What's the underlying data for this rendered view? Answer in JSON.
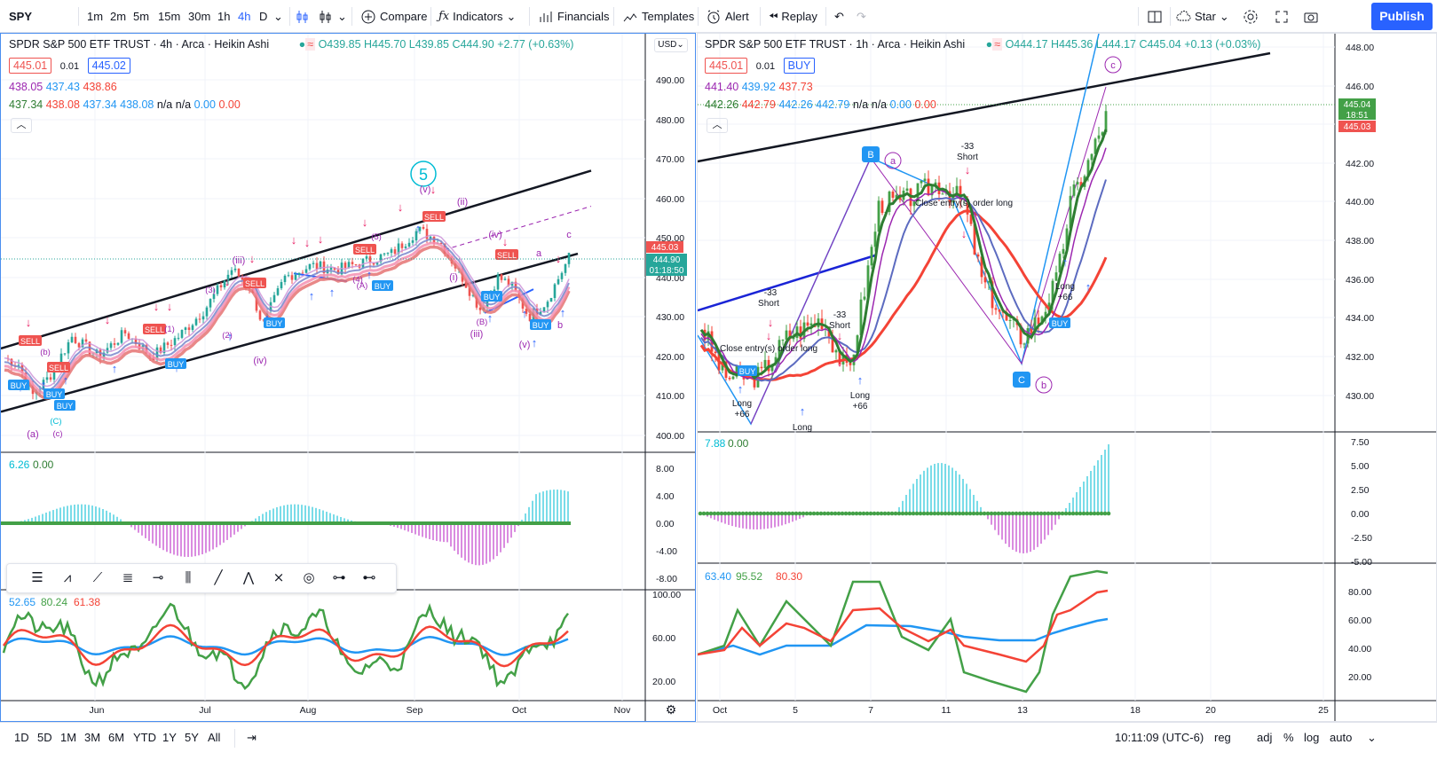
{
  "symbol": "SPY",
  "toolbar": {
    "intervals": [
      "1m",
      "2m",
      "5m",
      "15m",
      "30m",
      "1h",
      "4h",
      "D"
    ],
    "active_interval": "4h",
    "compare": "Compare",
    "indicators": "Indicators",
    "financials": "Financials",
    "templates": "Templates",
    "alert": "Alert",
    "replay": "Replay",
    "star": "Star",
    "publish": "Publish"
  },
  "left_chart": {
    "title": "SPDR S&P 500 ETF TRUST · 4h · Arca · Heikin Ashi",
    "ohlc": {
      "o": "O439.85",
      "h": "H445.70",
      "l": "L439.85",
      "c": "C444.90",
      "chg": "+2.77 (+0.63%)"
    },
    "sell": "445.01",
    "spread": "0.01",
    "buy": "445.02",
    "ind1": [
      "438.05",
      "437.43",
      "438.86"
    ],
    "ind2": [
      "437.34",
      "438.08",
      "437.34",
      "438.08",
      "n/a",
      "n/a",
      "0.00",
      "0.00"
    ],
    "currency": "USD",
    "price_ticks": [
      "490.00",
      "480.00",
      "470.00",
      "460.00",
      "450.00",
      "440.00",
      "430.00",
      "420.00",
      "410.00",
      "400.00"
    ],
    "price_tag": "445.03",
    "last_price": "444.90",
    "countdown": "01:18:50",
    "osc_value": [
      "6.26",
      "0.00"
    ],
    "osc_ticks": [
      "8.00",
      "4.00",
      "0.00",
      "-4.00",
      "-8.00"
    ],
    "rsi_values": [
      "52.65",
      "80.24",
      "61.38"
    ],
    "rsi_ticks": [
      "100.00",
      "60.00",
      "20.00"
    ],
    "time_ticks": [
      "Jun",
      "Jul",
      "Aug",
      "Sep",
      "Oct",
      "Nov"
    ],
    "wave_labels": [
      "5",
      "(v)",
      "(iii)",
      "(iv)",
      "(ii)",
      "(i)",
      "(iii)",
      "(iv)",
      "(v)",
      "(a)",
      "(b)",
      "(c)",
      "a",
      "b",
      "c",
      "(1)",
      "(2)",
      "(3)",
      "(4)",
      "(5)",
      "(A)",
      "(B)",
      "(C)"
    ],
    "signal_labels": [
      "SELL",
      "SELL",
      "SELL",
      "SELL",
      "SELL",
      "SELL",
      "SELL",
      "BUY",
      "BUY",
      "BUY",
      "BUY",
      "BUY",
      "BUY",
      "BUY"
    ]
  },
  "right_chart": {
    "title": "SPDR S&P 500 ETF TRUST · 1h · Arca · Heikin Ashi",
    "ohlc": {
      "o": "O444.17",
      "h": "H445.36",
      "l": "L444.17",
      "c": "C445.04",
      "chg": "+0.13 (+0.03%)"
    },
    "sell": "445.01",
    "spread": "0.01",
    "buy": "BUY",
    "ind1": [
      "441.40",
      "439.92",
      "437.73"
    ],
    "ind2": [
      "442.26",
      "442.79",
      "442.26",
      "442.79",
      "n/a",
      "n/a",
      "0.00",
      "0.00"
    ],
    "price_ticks": [
      "448.00",
      "446.00",
      "444.00",
      "442.00",
      "440.00",
      "438.00",
      "436.00",
      "434.00",
      "432.00",
      "430.00"
    ],
    "price_tag_1": "445.04",
    "countdown": "18:51",
    "price_tag_2": "445.03",
    "osc_value": [
      "7.88",
      "0.00"
    ],
    "osc_ticks": [
      "7.50",
      "5.00",
      "2.50",
      "0.00",
      "-2.50",
      "-5.00"
    ],
    "rsi_values": [
      "63.40",
      "95.52",
      "80.30"
    ],
    "rsi_ticks": [
      "80.00",
      "60.00",
      "40.00",
      "20.00"
    ],
    "time_ticks": [
      "Oct",
      "5",
      "7",
      "11",
      "13",
      "18",
      "20",
      "25"
    ],
    "annotations": {
      "short1": "-33",
      "short1b": "Short",
      "close1": "Close entry(s) order long",
      "short2": "-33",
      "short2b": "Short",
      "short3": "-33",
      "short3b": "Short",
      "close2": "Close entry(s) order long",
      "long1": "Long",
      "long1b": "+66",
      "long2": "Long",
      "long2b": "+66",
      "long3": "Long",
      "long3b": "+66",
      "long4": "Long"
    },
    "points": [
      "B",
      "C",
      "a",
      "b",
      "c"
    ],
    "buy_small": "BUY"
  },
  "bottom": {
    "ranges": [
      "1D",
      "5D",
      "1M",
      "3M",
      "6M",
      "YTD",
      "1Y",
      "5Y",
      "All"
    ],
    "time": "10:11:09 (UTC-6)",
    "reg": "reg",
    "adj": "adj",
    "pct": "%",
    "log": "log",
    "auto": "auto"
  },
  "colors": {
    "accent": "#2962ff",
    "up": "#26a69a",
    "down": "#ef5350",
    "green": "#43a047",
    "red": "#f44336",
    "blue": "#2196f3",
    "purple": "#9c27b0",
    "pink": "#e91e63",
    "cyan": "#00bcd4"
  }
}
